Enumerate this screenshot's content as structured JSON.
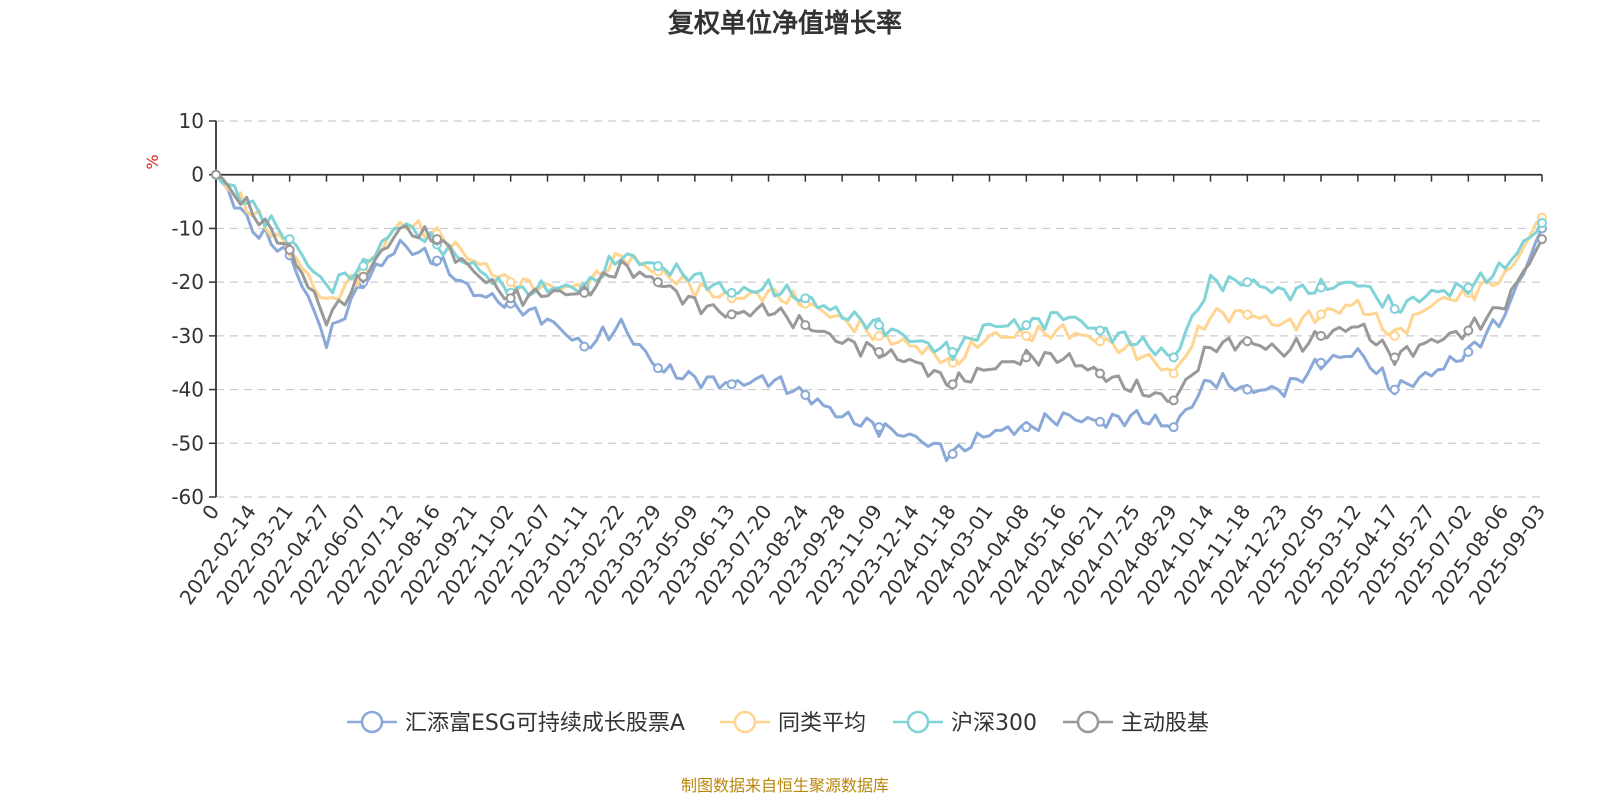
{
  "chart_data": {
    "type": "line",
    "title": "复权单位净值增长率",
    "ylabel": "%",
    "ylim": [
      -60,
      10
    ],
    "yticks": [
      "10",
      "0",
      "-10",
      "-20",
      "-30",
      "-40",
      "-50",
      "-60"
    ],
    "categories": [
      "0",
      "2022-02-14",
      "2022-03-21",
      "2022-04-27",
      "2022-06-07",
      "2022-07-12",
      "2022-08-16",
      "2022-09-21",
      "2022-11-02",
      "2022-12-07",
      "2023-01-11",
      "2023-02-22",
      "2023-03-29",
      "2023-05-09",
      "2023-06-13",
      "2023-07-20",
      "2023-08-24",
      "2023-09-28",
      "2023-11-09",
      "2023-12-14",
      "2024-01-18",
      "2024-03-01",
      "2024-04-08",
      "2024-05-16",
      "2024-06-21",
      "2024-07-25",
      "2024-08-29",
      "2024-10-14",
      "2024-11-18",
      "2024-12-23",
      "2025-02-05",
      "2025-03-12",
      "2025-04-17",
      "2025-05-27",
      "2025-07-02",
      "2025-08-06",
      "2025-09-03"
    ],
    "grid": true,
    "legend_position": "bottom",
    "series": [
      {
        "name": "汇添富ESG可持续成长股票A",
        "color": "#8aa9d8",
        "values": [
          0,
          -10,
          -15,
          -31,
          -20,
          -13,
          -16,
          -22,
          -24,
          -27,
          -32,
          -28,
          -36,
          -38,
          -39,
          -38,
          -41,
          -45,
          -47,
          -49,
          -52,
          -48,
          -47,
          -45,
          -46,
          -45,
          -47,
          -38,
          -40,
          -40,
          -35,
          -33,
          -40,
          -37,
          -33,
          -26,
          -10
        ]
      },
      {
        "name": "同类平均",
        "color": "#ffd591",
        "values": [
          0,
          -7,
          -14,
          -24,
          -18,
          -9,
          -11,
          -16,
          -20,
          -21,
          -21,
          -15,
          -18,
          -21,
          -23,
          -22,
          -24,
          -27,
          -30,
          -32,
          -35,
          -30,
          -30,
          -29,
          -31,
          -33,
          -37,
          -26,
          -26,
          -28,
          -26,
          -24,
          -30,
          -24,
          -22,
          -19,
          -8
        ]
      },
      {
        "name": "沪深300",
        "color": "#80d3d6",
        "values": [
          0,
          -6,
          -12,
          -21,
          -17,
          -9,
          -13,
          -17,
          -22,
          -21,
          -21,
          -15,
          -17,
          -19,
          -22,
          -21,
          -23,
          -26,
          -28,
          -31,
          -33,
          -28,
          -28,
          -26,
          -29,
          -31,
          -34,
          -20,
          -20,
          -22,
          -21,
          -20,
          -25,
          -22,
          -21,
          -17,
          -9
        ]
      },
      {
        "name": "主动股基",
        "color": "#999999",
        "values": [
          0,
          -7,
          -14,
          -27,
          -19,
          -10,
          -12,
          -18,
          -23,
          -22,
          -22,
          -17,
          -20,
          -24,
          -26,
          -25,
          -28,
          -31,
          -33,
          -35,
          -39,
          -36,
          -34,
          -34,
          -37,
          -40,
          -42,
          -32,
          -31,
          -33,
          -30,
          -28,
          -34,
          -31,
          -29,
          -24,
          -12
        ]
      }
    ]
  },
  "source_note": "制图数据来自恒生聚源数据库"
}
